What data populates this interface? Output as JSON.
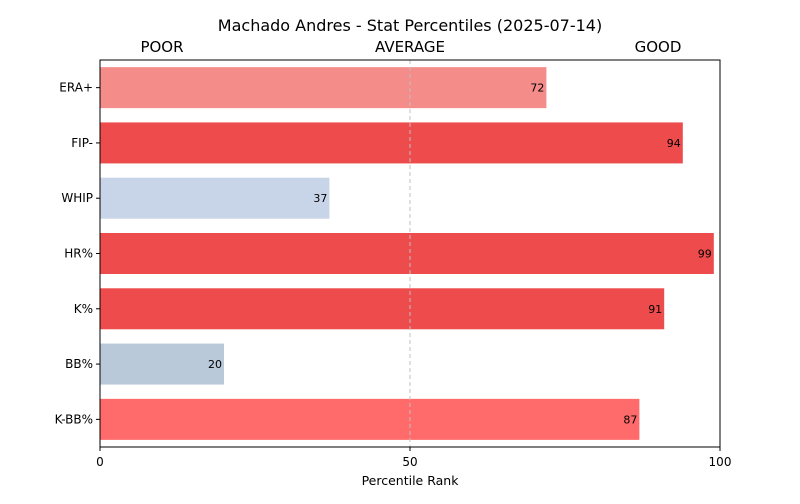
{
  "chart_data": {
    "type": "bar",
    "orientation": "horizontal",
    "title": "Machado Andres - Stat Percentiles (2025-07-14)",
    "xlabel": "Percentile Rank",
    "ylabel": "",
    "xlim": [
      0,
      100
    ],
    "xticks": [
      0,
      50,
      100
    ],
    "reference_line": 50,
    "zone_labels": [
      {
        "label": "POOR",
        "at": 10
      },
      {
        "label": "AVERAGE",
        "at": 50
      },
      {
        "label": "GOOD",
        "at": 90
      }
    ],
    "categories": [
      "ERA+",
      "FIP-",
      "WHIP",
      "HR%",
      "K%",
      "BB%",
      "K-BB%"
    ],
    "values": [
      72,
      94,
      37,
      99,
      91,
      20,
      87
    ],
    "colors": [
      "#f48c8a",
      "#ed4b4c",
      "#c8d4e8",
      "#ed4b4c",
      "#ed4b4c",
      "#b9c9da",
      "#ff6a6a"
    ],
    "grid": false
  }
}
